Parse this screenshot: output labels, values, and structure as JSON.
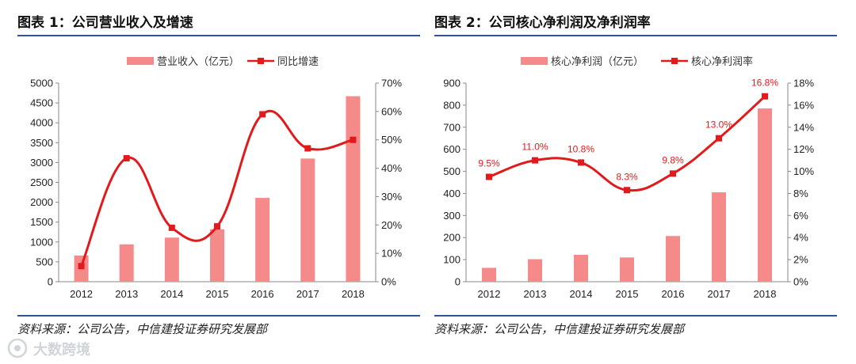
{
  "colors": {
    "bar": "#f58a8a",
    "line": "#e31a1c",
    "label": "#e31a1c",
    "rule": "#2f5597"
  },
  "left": {
    "title": "图表 1：公司营业收入及增速",
    "source": "资料来源：公司公告，中信建投证券研究发展部"
  },
  "right": {
    "title": "图表 2：公司核心净利润及净利润率",
    "source": "资料来源：公司公告，中信建投证券研究发展部"
  },
  "watermark": "大数跨境",
  "chart_data": [
    {
      "type": "bar",
      "title": "公司营业收入及增速",
      "categories": [
        "2012",
        "2013",
        "2014",
        "2015",
        "2016",
        "2017",
        "2018"
      ],
      "series": [
        {
          "name": "营业收入（亿元）",
          "type": "bar",
          "axis": "left",
          "values": [
            660,
            940,
            1110,
            1320,
            2110,
            3100,
            4670
          ]
        },
        {
          "name": "同比增速",
          "type": "line",
          "axis": "right",
          "smooth": true,
          "values": [
            5.5,
            43.5,
            19,
            19.5,
            59,
            47,
            50
          ]
        }
      ],
      "y_left": {
        "min": 0,
        "max": 5000,
        "step": 500,
        "ticks": [
          "0",
          "500",
          "1000",
          "1500",
          "2000",
          "2500",
          "3000",
          "3500",
          "4000",
          "4500",
          "5000"
        ]
      },
      "y_right": {
        "min": 0,
        "max": 70,
        "step": 10,
        "ticks": [
          "0%",
          "10%",
          "20%",
          "30%",
          "40%",
          "50%",
          "60%",
          "70%"
        ]
      },
      "legend_position": "top"
    },
    {
      "type": "bar",
      "title": "公司核心净利润及净利润率",
      "categories": [
        "2012",
        "2013",
        "2014",
        "2015",
        "2016",
        "2017",
        "2018"
      ],
      "series": [
        {
          "name": "核心净利润（亿元）",
          "type": "bar",
          "axis": "left",
          "values": [
            63,
            102,
            122,
            110,
            207,
            405,
            785
          ]
        },
        {
          "name": "核心净利润率",
          "type": "line",
          "axis": "right",
          "smooth": true,
          "values": [
            9.5,
            11.0,
            10.8,
            8.3,
            9.8,
            13.0,
            16.8
          ],
          "labels": [
            "9.5%",
            "11.0%",
            "10.8%",
            "8.3%",
            "9.8%",
            "13.0%",
            "16.8%"
          ]
        }
      ],
      "y_left": {
        "min": 0,
        "max": 900,
        "step": 100,
        "ticks": [
          "0",
          "100",
          "200",
          "300",
          "400",
          "500",
          "600",
          "700",
          "800",
          "900"
        ]
      },
      "y_right": {
        "min": 0,
        "max": 18,
        "step": 2,
        "ticks": [
          "0%",
          "2%",
          "4%",
          "6%",
          "8%",
          "10%",
          "12%",
          "14%",
          "16%",
          "18%"
        ]
      },
      "legend_position": "top"
    }
  ]
}
